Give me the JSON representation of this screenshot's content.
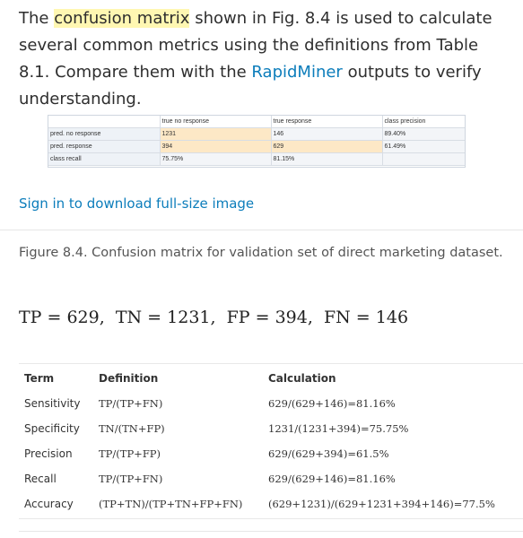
{
  "intro": {
    "before": "The ",
    "highlight": "confusion matrix",
    "middle": " shown in Fig. 8.4 is used to calculate several common metrics using the definitions from Table 8.1. Compare them with the ",
    "link": "RapidMiner",
    "after": " outputs to verify understanding."
  },
  "matrix": {
    "headers": [
      "",
      "true no response",
      "true response",
      "class precision"
    ],
    "rows": [
      [
        "pred. no response",
        "1231",
        "146",
        "89.40%"
      ],
      [
        "pred. response",
        "394",
        "629",
        "61.49%"
      ],
      [
        "class recall",
        "75.75%",
        "81.15%",
        ""
      ]
    ]
  },
  "signin_link": "Sign in to download full-size image",
  "caption": "Figure 8.4. Confusion matrix for validation set of direct marketing dataset.",
  "equation": "TP = 629,  TN = 1231,  FP = 394,  FN = 146",
  "table": {
    "headers": [
      "Term",
      "Definition",
      "Calculation"
    ],
    "rows": [
      [
        "Sensitivity",
        "TP/(TP+FN)",
        "629/(629+146)=81.16%"
      ],
      [
        "Specificity",
        "TN/(TN+FP)",
        "1231/(1231+394)=75.75%"
      ],
      [
        "Precision",
        "TP/(TP+FP)",
        "629/(629+394)=61.5%"
      ],
      [
        "Recall",
        "TP/(TP+FN)",
        "629/(629+146)=81.16%"
      ],
      [
        "Accuracy",
        "(TP+TN)/(TP+TN+FP+FN)",
        "(629+1231)/(629+1231+394+146)=77.5%"
      ]
    ]
  }
}
